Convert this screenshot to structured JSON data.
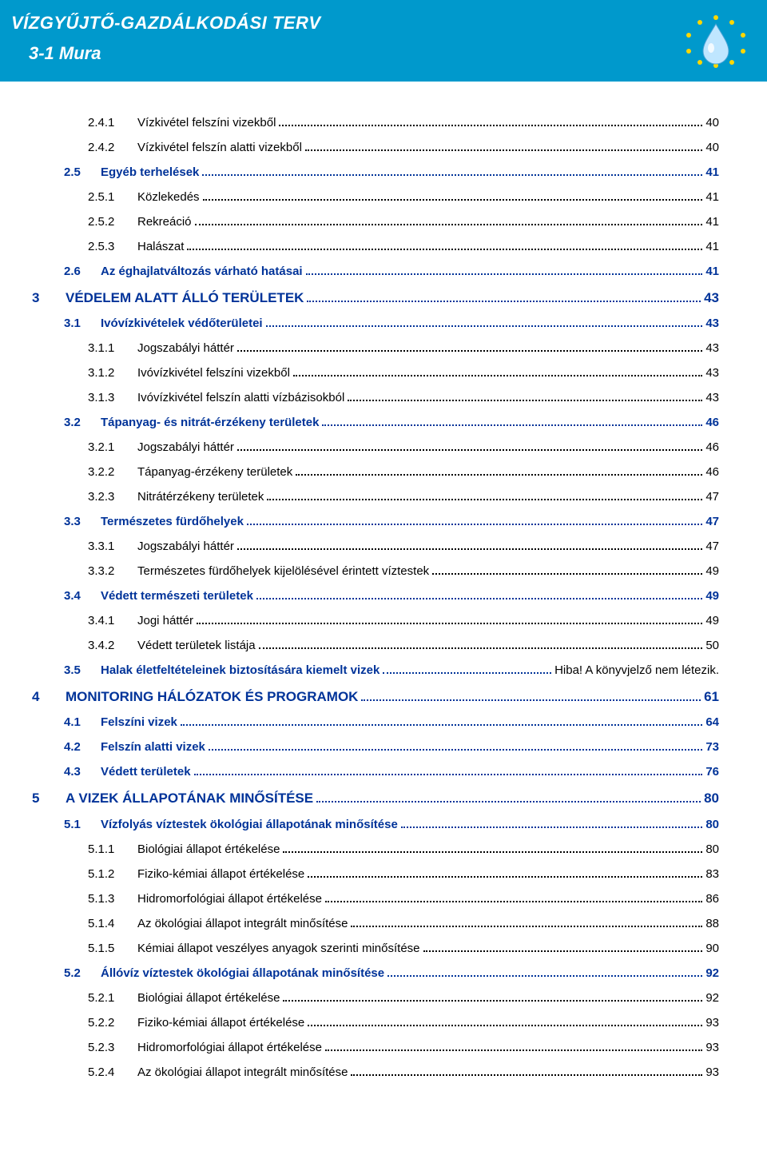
{
  "header": {
    "title": "VÍZGYŰJTŐ-GAZDÁLKODÁSI TERV",
    "subtitle": "3-1 Mura",
    "logo_bg": "#0099cc",
    "logo_body": "#87cefa",
    "logo_star": "#ffd700"
  },
  "colors": {
    "header_bg": "#0099cc",
    "header_text": "#ffffff",
    "level1_color": "#003399",
    "level2_color": "#003399",
    "level3_color": "#000000",
    "background": "#ffffff"
  },
  "typography": {
    "font_family": "Arial",
    "header_title_size": 22,
    "level1_size": 17,
    "body_size": 15
  },
  "toc": [
    {
      "level": 3,
      "num": "2.4.1",
      "text": "Vízkivétel felszíni vizekből",
      "page": "40"
    },
    {
      "level": 3,
      "num": "2.4.2",
      "text": "Vízkivétel felszín alatti vizekből",
      "page": "40"
    },
    {
      "level": 2,
      "num": "2.5",
      "text": "Egyéb terhelések",
      "page": "41"
    },
    {
      "level": 3,
      "num": "2.5.1",
      "text": "Közlekedés",
      "page": "41"
    },
    {
      "level": 3,
      "num": "2.5.2",
      "text": "Rekreáció",
      "page": "41"
    },
    {
      "level": 3,
      "num": "2.5.3",
      "text": "Halászat",
      "page": "41"
    },
    {
      "level": 2,
      "num": "2.6",
      "text": "Az éghajlatváltozás várható hatásai",
      "page": "41"
    },
    {
      "level": 1,
      "num": "3",
      "text": "VÉDELEM ALATT ÁLLÓ TERÜLETEK",
      "page": "43"
    },
    {
      "level": 2,
      "num": "3.1",
      "text": "Ivóvízkivételek védőterületei",
      "page": "43"
    },
    {
      "level": 3,
      "num": "3.1.1",
      "text": "Jogszabályi háttér",
      "page": "43"
    },
    {
      "level": 3,
      "num": "3.1.2",
      "text": "Ivóvízkivétel felszíni vizekből",
      "page": "43"
    },
    {
      "level": 3,
      "num": "3.1.3",
      "text": "Ivóvízkivétel felszín alatti vízbázisokból",
      "page": "43"
    },
    {
      "level": 2,
      "num": "3.2",
      "text": "Tápanyag- és nitrát-érzékeny területek",
      "page": "46"
    },
    {
      "level": 3,
      "num": "3.2.1",
      "text": "Jogszabályi háttér",
      "page": "46"
    },
    {
      "level": 3,
      "num": "3.2.2",
      "text": "Tápanyag-érzékeny területek",
      "page": "46"
    },
    {
      "level": 3,
      "num": "3.2.3",
      "text": "Nitrátérzékeny területek",
      "page": "47"
    },
    {
      "level": 2,
      "num": "3.3",
      "text": "Természetes fürdőhelyek",
      "page": "47"
    },
    {
      "level": 3,
      "num": "3.3.1",
      "text": "Jogszabályi háttér",
      "page": "47"
    },
    {
      "level": 3,
      "num": "3.3.2",
      "text": "Természetes fürdőhelyek kijelölésével érintett víztestek",
      "page": "49"
    },
    {
      "level": 2,
      "num": "3.4",
      "text": "Védett természeti területek",
      "page": "49"
    },
    {
      "level": 3,
      "num": "3.4.1",
      "text": "Jogi háttér",
      "page": "49"
    },
    {
      "level": 3,
      "num": "3.4.2",
      "text": "Védett területek listája",
      "page": "50"
    },
    {
      "level": 2,
      "num": "3.5",
      "text": "Halak életfeltételeinek biztosítására kiemelt vizek",
      "page": "Hiba! A könyvjelző nem létezik.",
      "special": true
    },
    {
      "level": 1,
      "num": "4",
      "text": "MONITORING HÁLÓZATOK ÉS PROGRAMOK",
      "page": "61"
    },
    {
      "level": 2,
      "num": "4.1",
      "text": "Felszíni vizek",
      "page": "64"
    },
    {
      "level": 2,
      "num": "4.2",
      "text": "Felszín alatti vizek",
      "page": "73"
    },
    {
      "level": 2,
      "num": "4.3",
      "text": "Védett területek",
      "page": "76"
    },
    {
      "level": 1,
      "num": "5",
      "text": "A VIZEK ÁLLAPOTÁNAK MINŐSÍTÉSE",
      "page": "80"
    },
    {
      "level": 2,
      "num": "5.1",
      "text": "Vízfolyás víztestek ökológiai állapotának minősítése",
      "page": "80"
    },
    {
      "level": 3,
      "num": "5.1.1",
      "text": "Biológiai állapot értékelése",
      "page": "80"
    },
    {
      "level": 3,
      "num": "5.1.2",
      "text": "Fiziko-kémiai állapot értékelése",
      "page": "83"
    },
    {
      "level": 3,
      "num": "5.1.3",
      "text": "Hidromorfológiai állapot értékelése",
      "page": "86"
    },
    {
      "level": 3,
      "num": "5.1.4",
      "text": "Az ökológiai állapot integrált minősítése",
      "page": "88"
    },
    {
      "level": 3,
      "num": "5.1.5",
      "text": "Kémiai állapot veszélyes anyagok szerinti minősítése",
      "page": "90"
    },
    {
      "level": 2,
      "num": "5.2",
      "text": "Állóvíz víztestek ökológiai állapotának minősítése",
      "page": "92"
    },
    {
      "level": 3,
      "num": "5.2.1",
      "text": "Biológiai állapot értékelése",
      "page": "92"
    },
    {
      "level": 3,
      "num": "5.2.2",
      "text": "Fiziko-kémiai állapot értékelése",
      "page": "93"
    },
    {
      "level": 3,
      "num": "5.2.3",
      "text": "Hidromorfológiai állapot értékelése",
      "page": "93"
    },
    {
      "level": 3,
      "num": "5.2.4",
      "text": "Az ökológiai állapot integrált minősítése",
      "page": "93"
    }
  ]
}
